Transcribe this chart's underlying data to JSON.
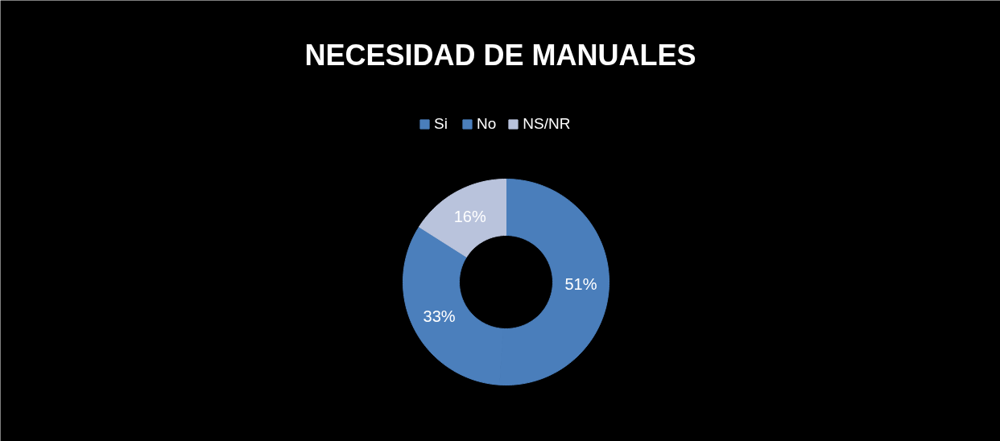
{
  "chart_data": {
    "type": "donut",
    "title": "NECESIDAD DE MANUALES",
    "categories": [
      "Si",
      "No",
      "NS/NR"
    ],
    "values": [
      51,
      33,
      16
    ],
    "colors": [
      "#4a7ebb",
      "#4b7fbc",
      "#b9c3dc"
    ],
    "value_labels": [
      "51%",
      "33%",
      "16%"
    ],
    "legend": "top"
  }
}
